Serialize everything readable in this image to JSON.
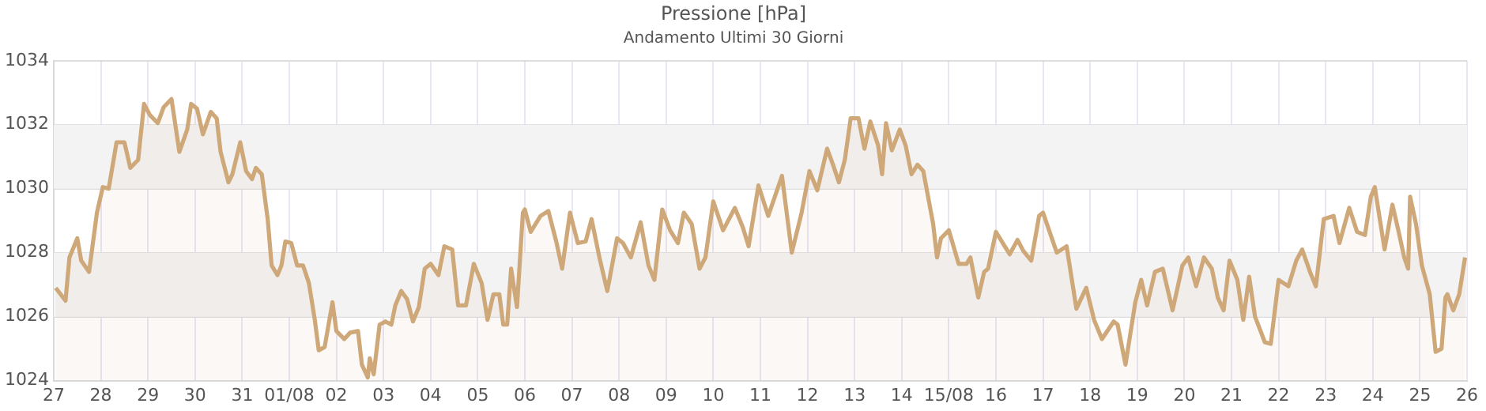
{
  "chart_data": {
    "type": "area",
    "title": "Pressione [hPa]",
    "subtitle": "Andamento Ultimi 30 Giorni",
    "xlim": [
      "--07-27",
      "--08-26"
    ],
    "xticks": [
      {
        "value": "--07-27",
        "label": "27"
      },
      {
        "value": "--07-28",
        "label": "28"
      },
      {
        "value": "--07-29",
        "label": "29"
      },
      {
        "value": "--07-30",
        "label": "30"
      },
      {
        "value": "--07-31",
        "label": "31"
      },
      {
        "value": "--08-01",
        "label": "01/08"
      },
      {
        "value": "--08-02",
        "label": "02"
      },
      {
        "value": "--08-03",
        "label": "03"
      },
      {
        "value": "--08-04",
        "label": "04"
      },
      {
        "value": "--08-05",
        "label": "05"
      },
      {
        "value": "--08-06",
        "label": "06"
      },
      {
        "value": "--08-07",
        "label": "07"
      },
      {
        "value": "--08-08",
        "label": "08"
      },
      {
        "value": "--08-09",
        "label": "09"
      },
      {
        "value": "--08-10",
        "label": "10"
      },
      {
        "value": "--08-11",
        "label": "11"
      },
      {
        "value": "--08-12",
        "label": "12"
      },
      {
        "value": "--08-13",
        "label": "13"
      },
      {
        "value": "--08-14",
        "label": "14"
      },
      {
        "value": "--08-15",
        "label": "15/08"
      },
      {
        "value": "--08-16",
        "label": "16"
      },
      {
        "value": "--08-17",
        "label": "17"
      },
      {
        "value": "--08-18",
        "label": "18"
      },
      {
        "value": "--08-19",
        "label": "19"
      },
      {
        "value": "--08-20",
        "label": "20"
      },
      {
        "value": "--08-21",
        "label": "21"
      },
      {
        "value": "--08-22",
        "label": "22"
      },
      {
        "value": "--08-23",
        "label": "23"
      },
      {
        "value": "--08-24",
        "label": "24"
      },
      {
        "value": "--08-25",
        "label": "25"
      },
      {
        "value": "--08-26",
        "label": "26"
      }
    ],
    "ylim": [
      1024,
      1034
    ],
    "yticks": [
      1024,
      1026,
      1028,
      1030,
      1032,
      1034
    ],
    "grid": true,
    "legend": false,
    "marker": "none",
    "line_style": "solid",
    "bands": [
      {
        "axis": "y",
        "from": 1026,
        "to": 1028,
        "color": "#f3f3f4"
      },
      {
        "axis": "y",
        "from": 1030,
        "to": 1032,
        "color": "#f3f3f4"
      }
    ],
    "series": [
      {
        "color": "#cfa87a",
        "x": [
          "--07-27T01:00",
          "--07-27T06:00",
          "--07-27T08:00",
          "--07-27T12:00",
          "--07-27T14:00",
          "--07-27T18:00",
          "--07-27T22:00",
          "--07-28T01:00",
          "--07-28T04:00",
          "--07-28T08:00",
          "--07-28T12:00",
          "--07-28T15:00",
          "--07-28T19:00",
          "--07-28T22:00",
          "--07-29T01:00",
          "--07-29T05:00",
          "--07-29T08:00",
          "--07-29T12:00",
          "--07-29T16:00",
          "--07-29T20:00",
          "--07-29T22:00",
          "--07-30T01:00",
          "--07-30T04:00",
          "--07-30T08:00",
          "--07-30T11:00",
          "--07-30T13:00",
          "--07-30T17:00",
          "--07-30T19:00",
          "--07-30T23:00",
          "--07-31T02:00",
          "--07-31T05:00",
          "--07-31T07:00",
          "--07-31T10:00",
          "--07-31T13:00",
          "--07-31T15:00",
          "--07-31T18:00",
          "--07-31T20:00",
          "--07-31T22:00",
          "--08-01T01:00",
          "--08-01T04:00",
          "--08-01T07:00",
          "--08-01T10:00",
          "--08-01T13:00",
          "--08-01T15:00",
          "--08-01T18:00",
          "--08-01T22:00",
          "--08-02T00:00",
          "--08-02T04:00",
          "--08-02T07:00",
          "--08-02T11:00",
          "--08-02T13:00",
          "--08-02T16:00",
          "--08-02T17:00",
          "--08-02T19:00",
          "--08-02T22:00",
          "--08-03T01:00",
          "--08-03T04:00",
          "--08-03T06:00",
          "--08-03T09:00",
          "--08-03T12:00",
          "--08-03T15:00",
          "--08-03T18:00",
          "--08-03T21:00",
          "--08-04T00:00",
          "--08-04T04:00",
          "--08-04T07:00",
          "--08-04T11:00",
          "--08-04T14:00",
          "--08-04T18:00",
          "--08-04T22:00",
          "--08-05T02:00",
          "--08-05T05:00",
          "--08-05T08:00",
          "--08-05T11:00",
          "--08-05T13:00",
          "--08-05T15:00",
          "--08-05T17:00",
          "--08-05T20:00",
          "--08-05T23:00",
          "--08-06T00:00",
          "--08-06T03:00",
          "--08-06T08:00",
          "--08-06T12:00",
          "--08-06T16:00",
          "--08-06T19:00",
          "--08-06T23:00",
          "--08-07T03:00",
          "--08-07T07:00",
          "--08-07T10:00",
          "--08-07T14:00",
          "--08-07T18:00",
          "--08-07T23:00",
          "--08-08T02:00",
          "--08-08T06:00",
          "--08-08T11:00",
          "--08-08T15:00",
          "--08-08T18:00",
          "--08-08T22:00",
          "--08-09T02:00",
          "--08-09T06:00",
          "--08-09T09:00",
          "--08-09T13:00",
          "--08-09T17:00",
          "--08-09T20:00",
          "--08-10T00:00",
          "--08-10T05:00",
          "--08-10T11:00",
          "--08-10T15:00",
          "--08-10T18:00",
          "--08-10T23:00",
          "--08-11T04:00",
          "--08-11T11:00",
          "--08-11T16:00",
          "--08-11T21:00",
          "--08-12T01:00",
          "--08-12T05:00",
          "--08-12T10:00",
          "--08-12T13:00",
          "--08-12T16:00",
          "--08-12T19:00",
          "--08-12T22:00",
          "--08-13T02:00",
          "--08-13T05:00",
          "--08-13T08:00",
          "--08-13T12:00",
          "--08-13T14:00",
          "--08-13T16:00",
          "--08-13T19:00",
          "--08-13T23:00",
          "--08-14T02:00",
          "--08-14T05:00",
          "--08-14T08:00",
          "--08-14T11:00",
          "--08-14T16:00",
          "--08-14T18:00",
          "--08-14T20:00",
          "--08-15T00:00",
          "--08-15T05:00",
          "--08-15T09:00",
          "--08-15T11:00",
          "--08-15T15:00",
          "--08-15T18:00",
          "--08-15T20:00",
          "--08-16T00:00",
          "--08-16T07:00",
          "--08-16T11:00",
          "--08-16T14:00",
          "--08-16T18:00",
          "--08-16T22:00",
          "--08-17T00:00",
          "--08-17T07:00",
          "--08-17T12:00",
          "--08-17T17:00",
          "--08-17T22:00",
          "--08-18T02:00",
          "--08-18T06:00",
          "--08-18T12:00",
          "--08-18T14:00",
          "--08-18T18:00",
          "--08-18T23:00",
          "--08-19T02:00",
          "--08-19T05:00",
          "--08-19T09:00",
          "--08-19T13:00",
          "--08-19T18:00",
          "--08-19T23:00",
          "--08-20T02:00",
          "--08-20T06:00",
          "--08-20T10:00",
          "--08-20T14:00",
          "--08-20T17:00",
          "--08-20T20:00",
          "--08-20T23:00",
          "--08-21T03:00",
          "--08-21T06:00",
          "--08-21T09:00",
          "--08-21T12:00",
          "--08-21T17:00",
          "--08-21T20:00",
          "--08-22T00:00",
          "--08-22T05:00",
          "--08-22T09:00",
          "--08-22T12:00",
          "--08-22T16:00",
          "--08-22T19:00",
          "--08-22T23:00",
          "--08-23T04:00",
          "--08-23T07:00",
          "--08-23T12:00",
          "--08-23T16:00",
          "--08-23T20:00",
          "--08-23T23:00",
          "--08-24T01:00",
          "--08-24T06:00",
          "--08-24T10:00",
          "--08-24T13:00",
          "--08-24T16:00",
          "--08-24T18:00",
          "--08-24T19:00",
          "--08-24T22:00",
          "--08-25T01:00",
          "--08-25T05:00",
          "--08-25T08:00",
          "--08-25T11:00",
          "--08-25T13:00",
          "--08-25T14:00",
          "--08-25T17:00",
          "--08-25T20:00",
          "--08-25T23:00"
        ],
        "values": [
          1026.9,
          1026.5,
          1027.85,
          1028.45,
          1027.75,
          1027.4,
          1029.25,
          1030.05,
          1030.0,
          1031.45,
          1031.45,
          1030.65,
          1030.9,
          1032.65,
          1032.3,
          1032.05,
          1032.55,
          1032.8,
          1031.15,
          1031.85,
          1032.65,
          1032.5,
          1031.7,
          1032.4,
          1032.2,
          1031.15,
          1030.2,
          1030.45,
          1031.45,
          1030.55,
          1030.3,
          1030.65,
          1030.45,
          1029.05,
          1027.6,
          1027.3,
          1027.6,
          1028.35,
          1028.3,
          1027.6,
          1027.6,
          1027.05,
          1025.9,
          1024.95,
          1025.05,
          1026.45,
          1025.55,
          1025.3,
          1025.5,
          1025.55,
          1024.5,
          1024.1,
          1024.7,
          1024.2,
          1025.75,
          1025.85,
          1025.75,
          1026.35,
          1026.8,
          1026.55,
          1025.85,
          1026.3,
          1027.5,
          1027.65,
          1027.3,
          1028.2,
          1028.1,
          1026.35,
          1026.35,
          1027.65,
          1027.05,
          1025.9,
          1026.7,
          1026.7,
          1025.75,
          1025.75,
          1027.5,
          1026.3,
          1029.25,
          1029.35,
          1028.65,
          1029.15,
          1029.3,
          1028.35,
          1027.5,
          1029.25,
          1028.3,
          1028.35,
          1029.05,
          1027.85,
          1026.8,
          1028.45,
          1028.3,
          1027.85,
          1028.95,
          1027.6,
          1027.15,
          1029.35,
          1028.7,
          1028.3,
          1029.25,
          1028.9,
          1027.5,
          1027.85,
          1029.6,
          1028.7,
          1029.4,
          1028.8,
          1028.2,
          1030.1,
          1029.15,
          1030.4,
          1028.0,
          1029.25,
          1030.55,
          1029.95,
          1031.25,
          1030.75,
          1030.2,
          1030.9,
          1032.2,
          1032.2,
          1031.25,
          1032.1,
          1031.35,
          1030.45,
          1032.05,
          1031.2,
          1031.85,
          1031.35,
          1030.45,
          1030.75,
          1030.55,
          1028.9,
          1027.85,
          1028.45,
          1028.7,
          1027.65,
          1027.65,
          1027.85,
          1026.6,
          1027.4,
          1027.5,
          1028.65,
          1027.95,
          1028.4,
          1028.05,
          1027.75,
          1029.15,
          1029.25,
          1028.0,
          1028.2,
          1026.25,
          1026.9,
          1025.9,
          1025.3,
          1025.85,
          1025.75,
          1024.5,
          1026.45,
          1027.15,
          1026.35,
          1027.4,
          1027.5,
          1026.2,
          1027.6,
          1027.85,
          1026.95,
          1027.85,
          1027.5,
          1026.6,
          1026.2,
          1027.75,
          1027.15,
          1025.9,
          1027.25,
          1026.0,
          1025.2,
          1025.15,
          1027.15,
          1026.95,
          1027.75,
          1028.1,
          1027.4,
          1026.95,
          1029.05,
          1029.15,
          1028.3,
          1029.4,
          1028.65,
          1028.55,
          1029.75,
          1030.05,
          1028.1,
          1029.5,
          1028.7,
          1027.85,
          1027.5,
          1029.75,
          1028.9,
          1027.6,
          1026.7,
          1024.9,
          1025.0,
          1026.6,
          1026.7,
          1026.2,
          1026.7,
          1027.85
        ]
      }
    ]
  }
}
